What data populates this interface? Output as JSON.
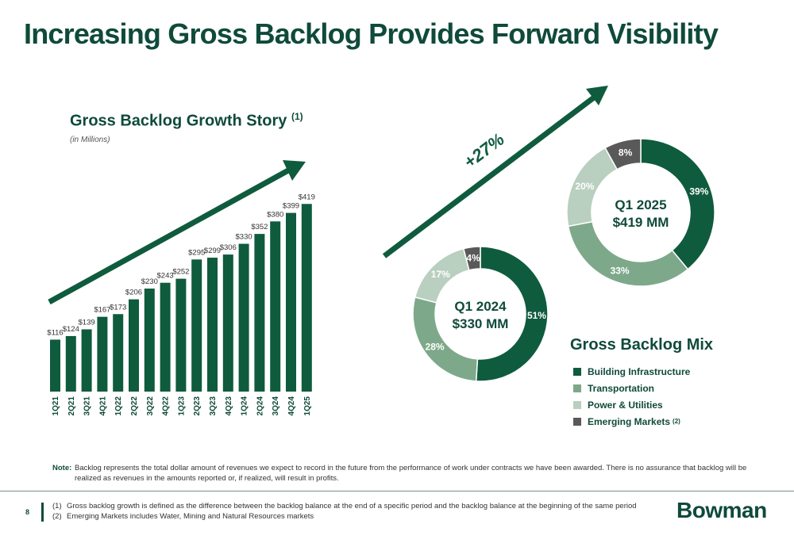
{
  "title": "Increasing Gross Backlog Provides Forward Visibility",
  "bar_section": {
    "title": "Gross Backlog Growth Story",
    "title_sup": "(1)",
    "subtitle": "(in Millions)"
  },
  "growth_label": "+27%",
  "colors": {
    "primary": "#0f5b3e",
    "transportation": "#7da98a",
    "power": "#b9cfbf",
    "emerging": "#595959",
    "title": "#0f4a3a"
  },
  "chart_data": [
    {
      "type": "bar",
      "categories": [
        "1Q21",
        "2Q21",
        "3Q21",
        "4Q21",
        "1Q22",
        "2Q22",
        "3Q22",
        "4Q22",
        "1Q23",
        "2Q23",
        "3Q23",
        "4Q23",
        "1Q24",
        "2Q24",
        "3Q24",
        "4Q24",
        "1Q25"
      ],
      "values": [
        116,
        124,
        139,
        167,
        173,
        206,
        230,
        243,
        252,
        295,
        299,
        306,
        330,
        352,
        380,
        399,
        419
      ],
      "value_labels": [
        "$116",
        "$124",
        "$139",
        "$167",
        "$173",
        "$206",
        "$230",
        "$243",
        "$252",
        "$295",
        "$299",
        "$306",
        "$330",
        "$352",
        "$380",
        "$399",
        "$419"
      ],
      "title": "Gross Backlog Growth Story",
      "ylabel": "",
      "grid": false
    },
    {
      "type": "pie",
      "center_label": [
        "Q1 2024",
        "$330 MM"
      ],
      "labels": [
        "Building Infrastructure",
        "Transportation",
        "Power & Utilities",
        "Emerging Markets"
      ],
      "values": [
        51,
        28,
        17,
        4
      ],
      "value_labels": [
        "51%",
        "28%",
        "17%",
        "4%"
      ]
    },
    {
      "type": "pie",
      "center_label": [
        "Q1 2025",
        "$419 MM"
      ],
      "labels": [
        "Building Infrastructure",
        "Transportation",
        "Power & Utilities",
        "Emerging Markets"
      ],
      "values": [
        39,
        33,
        20,
        8
      ],
      "value_labels": [
        "39%",
        "33%",
        "20%",
        "8%"
      ]
    }
  ],
  "mix": {
    "title": "Gross Backlog Mix",
    "legend": [
      {
        "label": "Building Infrastructure",
        "sup": "",
        "color": "#0f5b3e"
      },
      {
        "label": "Transportation",
        "sup": "",
        "color": "#7da98a"
      },
      {
        "label": "Power & Utilities",
        "sup": "",
        "color": "#b9cfbf"
      },
      {
        "label": "Emerging Markets",
        "sup": "(2)",
        "color": "#595959"
      }
    ]
  },
  "note": {
    "label": "Note:",
    "text": "Backlog represents the total dollar amount of revenues we expect to record in the future from the performance of work under contracts we have been awarded. There is no assurance that backlog will be realized as revenues in the amounts reported or, if realized, will result in profits."
  },
  "footnotes": [
    {
      "num": "(1)",
      "text": "Gross backlog growth is defined as the difference between the backlog balance at the end of a specific period and the backlog balance at the beginning of the same period"
    },
    {
      "num": "(2)",
      "text": "Emerging Markets includes Water, Mining and Natural Resources markets"
    }
  ],
  "page_number": "8",
  "logo": "Bowman"
}
